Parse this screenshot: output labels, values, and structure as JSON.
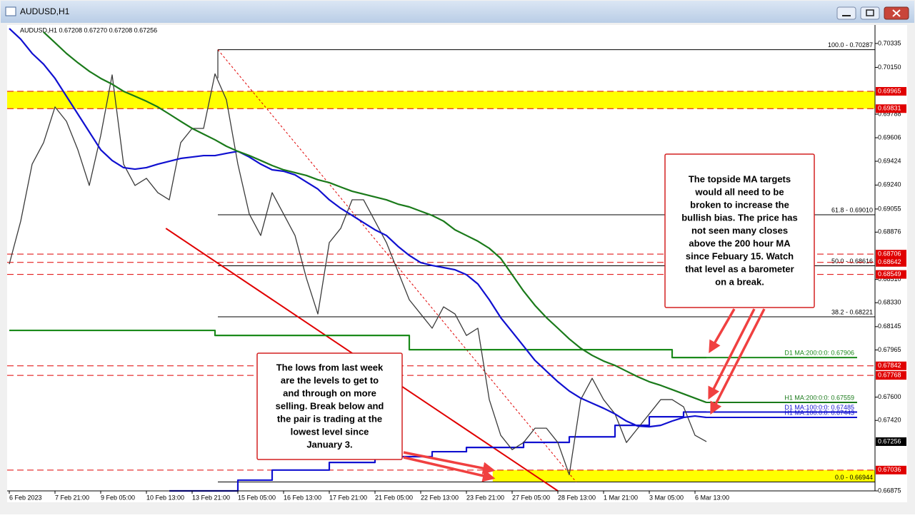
{
  "window_title": "AUDUSD,H1",
  "chart_data": {
    "type": "line",
    "info": "AUDUSD,H1  0.67208 0.67270 0.67208 0.67256",
    "categories": [
      "6 Feb 2023",
      null,
      null,
      null,
      "7 Feb 21:00",
      null,
      null,
      null,
      "9 Feb 05:00",
      null,
      null,
      null,
      "10 Feb 13:00",
      null,
      null,
      null,
      "13 Feb 21:00",
      null,
      null,
      null,
      "15 Feb 05:00",
      null,
      null,
      null,
      "16 Feb 13:00",
      null,
      null,
      null,
      "17 Feb 21:00",
      null,
      null,
      null,
      "21 Feb 05:00",
      null,
      null,
      null,
      "22 Feb 13:00",
      null,
      null,
      null,
      "23 Feb 21:00",
      null,
      null,
      null,
      "27 Feb 05:00",
      null,
      null,
      null,
      "28 Feb 13:00",
      null,
      null,
      null,
      "1 Mar 21:00",
      null,
      null,
      null,
      "3 Mar 05:00",
      null,
      null,
      null,
      "6 Mar 13:00",
      null
    ],
    "series": [
      {
        "name": "D1 MA:200:0:0: 0.67906",
        "color": "#1a8a1a",
        "step": true,
        "values": [
          0.68116,
          0.68116,
          0.68116,
          0.68116,
          0.68116,
          0.68116,
          0.68116,
          0.68116,
          0.68116,
          0.68116,
          0.68116,
          0.68116,
          0.68116,
          0.68116,
          0.68116,
          0.68116,
          0.68116,
          0.68116,
          0.68077,
          0.68077,
          0.68077,
          0.68077,
          0.68077,
          0.68077,
          0.68077,
          0.68077,
          0.68077,
          0.68077,
          0.68077,
          0.68077,
          0.68077,
          0.68077,
          0.68077,
          0.68077,
          0.68077,
          0.67967,
          0.67967,
          0.67967,
          0.67967,
          0.67967,
          0.67967,
          0.67967,
          0.67967,
          0.67967,
          0.67967,
          0.67967,
          0.67967,
          0.67967,
          0.67967,
          0.67967,
          0.67967,
          0.67967,
          0.67967,
          0.67967,
          0.67967,
          0.67967,
          0.67967,
          0.67967,
          0.67906,
          0.67906,
          0.67906,
          0.67906
        ]
      },
      {
        "name": "D1 MA:100:0:0: 0.67485",
        "color": "#1010d0",
        "step": true,
        "values": [
          null,
          null,
          null,
          null,
          null,
          null,
          null,
          null,
          null,
          null,
          null,
          null,
          null,
          null,
          0.66875,
          0.66875,
          0.66875,
          0.66875,
          0.66875,
          0.66875,
          0.66958,
          0.66958,
          0.66958,
          0.67036,
          0.67036,
          0.67036,
          0.67036,
          0.67036,
          0.67095,
          0.67095,
          0.67095,
          0.67095,
          0.6714,
          0.6714,
          0.6714,
          0.6714,
          0.6714,
          0.67178,
          0.67178,
          0.67178,
          0.67211,
          0.67211,
          0.67211,
          0.67211,
          0.67211,
          0.6725,
          0.6725,
          0.6725,
          0.6725,
          0.67293,
          0.67293,
          0.67293,
          0.67293,
          0.67382,
          0.67382,
          0.67382,
          0.67448,
          0.67448,
          0.67448,
          0.67485,
          0.67485,
          0.67485
        ]
      },
      {
        "color": "#3a3a3a",
        "values": [
          0.68629,
          0.68961,
          0.69402,
          0.69568,
          0.69844,
          0.69733,
          0.69513,
          0.69237,
          0.69623,
          0.70092,
          0.69402,
          0.69237,
          0.69292,
          0.69181,
          0.69126,
          0.69568,
          0.69678,
          0.69678,
          0.701,
          0.69899,
          0.69402,
          0.69016,
          0.6885,
          0.69181,
          0.69016,
          0.6885,
          0.68519,
          0.68243,
          0.68795,
          0.68905,
          0.69126,
          0.69126,
          0.68961,
          0.68795,
          0.68574,
          0.68353,
          0.68243,
          0.68133,
          0.68298,
          0.68243,
          0.68077,
          0.68133,
          0.67581,
          0.67305,
          0.67194,
          0.67249,
          0.6736,
          0.6736,
          0.67249,
          0.67,
          0.67581,
          0.67746,
          0.67581,
          0.6747,
          0.67249,
          0.6736,
          0.6747,
          0.67581,
          0.67581,
          0.67525,
          0.67305,
          0.67256
        ]
      },
      {
        "name": "H1 MA:100:0:0: 0.67443",
        "color": "#1010d0",
        "values": [
          0.70451,
          0.70368,
          0.70258,
          0.70175,
          0.70065,
          0.69927,
          0.69789,
          0.69651,
          0.69513,
          0.6943,
          0.69375,
          0.69363,
          0.69375,
          0.69402,
          0.69424,
          0.69446,
          0.69457,
          0.69468,
          0.69468,
          0.69485,
          0.69501,
          0.69457,
          0.69402,
          0.69358,
          0.69347,
          0.69319,
          0.69264,
          0.69209,
          0.69126,
          0.6906,
          0.69005,
          0.68949,
          0.68894,
          0.6885,
          0.68767,
          0.68696,
          0.6864,
          0.68618,
          0.68602,
          0.68585,
          0.68547,
          0.68475,
          0.68353,
          0.68215,
          0.68105,
          0.67995,
          0.67884,
          0.67801,
          0.67719,
          0.67647,
          0.67592,
          0.67553,
          0.67514,
          0.6747,
          0.67415,
          0.67376,
          0.67371,
          0.67382,
          0.67415,
          0.67443,
          0.67454,
          0.67443
        ]
      },
      {
        "name": "H1 MA:200:0:0: 0.67559",
        "color": "#1a7a1a",
        "values": [
          null,
          null,
          null,
          0.70423,
          0.70341,
          0.70258,
          0.70186,
          0.7012,
          0.70065,
          0.7002,
          0.69965,
          0.69927,
          0.69888,
          0.69844,
          0.69789,
          0.69733,
          0.69678,
          0.69634,
          0.6959,
          0.6954,
          0.69501,
          0.69468,
          0.6943,
          0.69391,
          0.69358,
          0.69336,
          0.69314,
          0.69281,
          0.69259,
          0.69225,
          0.69192,
          0.6917,
          0.69148,
          0.69126,
          0.69093,
          0.69071,
          0.69038,
          0.69005,
          0.68961,
          0.68894,
          0.6885,
          0.68806,
          0.68751,
          0.68673,
          0.68547,
          0.6842,
          0.68309,
          0.68215,
          0.68133,
          0.6805,
          0.67978,
          0.67923,
          0.67879,
          0.67845,
          0.67801,
          0.67757,
          0.67719,
          0.67691,
          0.67658,
          0.67625,
          0.67592,
          0.67559
        ]
      }
    ],
    "ylim": [
      0.66875,
      0.70478
    ],
    "yticks": [
      0.70335,
      {
        "value": 0.7015,
        "label": "0.70150"
      },
      0.69788,
      0.69606,
      0.69424,
      {
        "value": 0.6924,
        "label": "0.69240"
      },
      0.69055,
      0.68876,
      {
        "value": 0.6851,
        "label": "0.68510"
      },
      {
        "value": 0.6833,
        "label": "0.68330"
      },
      0.68145,
      0.67965,
      {
        "value": 0.676,
        "label": "0.67600"
      },
      {
        "value": 0.6742,
        "label": "0.67420"
      },
      0.66875
    ],
    "zones": [
      {
        "from": 0.69831,
        "to": 0.69965,
        "x_from": -0.2,
        "color": "#ffff00"
      },
      {
        "from": 0.66944,
        "to": 0.67036,
        "x_from": 42.3,
        "color": "#ffff00"
      }
    ],
    "levels": [
      0.69965,
      0.69831,
      0.68706,
      0.68642,
      0.68549,
      0.67842,
      0.67768,
      0.67036
    ],
    "level_color": "#e00000",
    "fib_levels": [
      {
        "value": 0.70287,
        "label": "100.0 - 0.70287"
      },
      {
        "value": 0.6901,
        "label": "61.8 - 0.69010"
      },
      {
        "value": 0.68616,
        "label": "50.0 - 0.68616"
      },
      {
        "value": 0.68221,
        "label": "38.2 - 0.68221"
      },
      {
        "value": 0.66944,
        "label": "0.0 - 0.66944"
      }
    ],
    "fib_x_from": 18.25,
    "trendlines": [
      {
        "from": [
          13.7,
          0.68905
        ],
        "to": [
          48,
          0.66875
        ],
        "color": "#e00000",
        "width": 2,
        "dash": false
      },
      {
        "from": [
          18.25,
          0.70287
        ],
        "to": [
          49.6,
          0.66944
        ],
        "color": "#e00000",
        "width": 1,
        "dash": true
      }
    ],
    "current_price": 0.67256,
    "annotations": [
      {
        "lines": [
          "The topside MA targets",
          "would all need to be",
          "broken to increase the",
          "bullish bias.  The price has",
          "not seen many closes",
          "above the 200 hour MA",
          "since Febuary 15.  Watch",
          "that level as a barometer",
          "on a break."
        ]
      },
      {
        "lines": [
          "The lows from last week",
          "are the levels to get to",
          "and through on more",
          "selling.  Break below and",
          "the pair is trading at the",
          "lowest level since",
          "January 3."
        ]
      }
    ]
  }
}
